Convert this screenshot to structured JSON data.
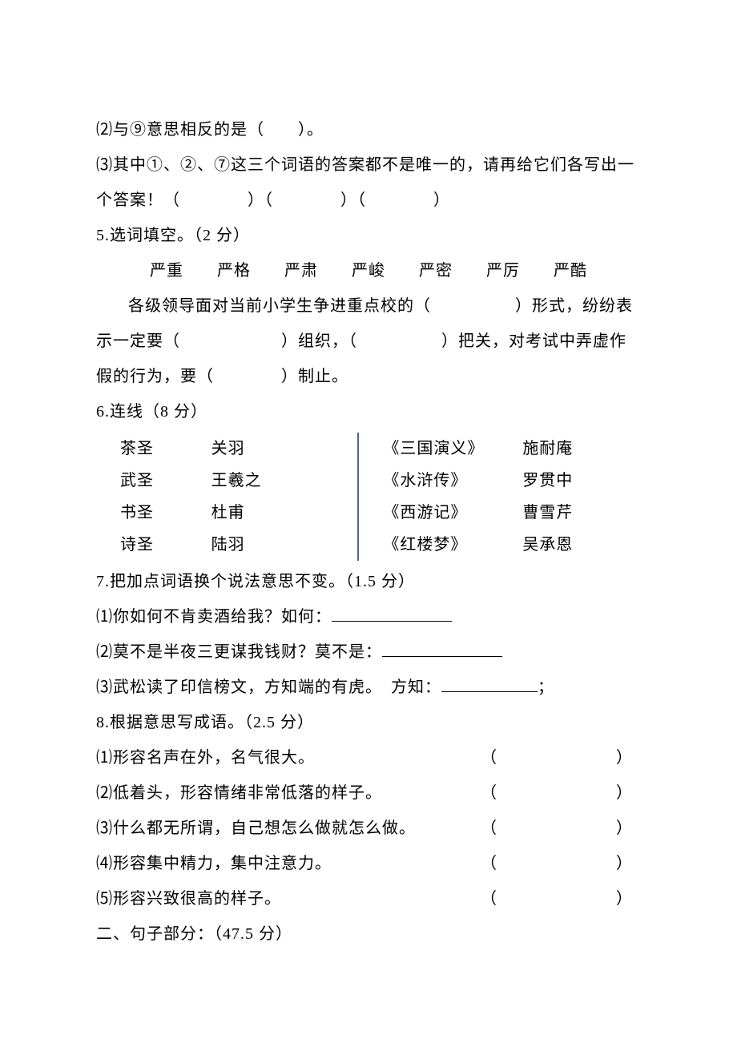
{
  "q2": "⑵与⑨意思相反的是（　　）。",
  "q3": "⑶其中①、②、⑦这三个词语的答案都不是唯一的，请再给它们各写出一个答案！（　　　　）（　　　　）（　　　　）",
  "q5_title": "5.选词填空。（2 分）",
  "q5_wordbank": "严重　　严格　　严肃　　严峻　　严密　　严厉　　严酷",
  "q5_sent1": "各级领导面对当前小学生争进重点校的（　　　　　）形式，纷纷表示一定要（　　　　　　）组织，（　　　　　）把关，对考试中弄虚作假的行为，要（　　　　）制止。",
  "q6_title": "6.连线（8 分）",
  "match_left": [
    {
      "a": "茶圣",
      "b": "关羽"
    },
    {
      "a": "武圣",
      "b": "王羲之"
    },
    {
      "a": "书圣",
      "b": "杜甫"
    },
    {
      "a": "诗圣",
      "b": "陆羽"
    }
  ],
  "match_right": [
    {
      "a": "《三国演义》",
      "b": "施耐庵"
    },
    {
      "a": "《水浒传》",
      "b": "罗贯中"
    },
    {
      "a": "《西游记》",
      "b": "曹雪芹"
    },
    {
      "a": "《红楼梦》",
      "b": "吴承恩"
    }
  ],
  "q7_title": "7.把加点词语换个说法意思不变。（1.5 分）",
  "q7_1": "⑴你如何不肯卖酒给我？如何：",
  "q7_2": "⑵莫不是半夜三更谋我钱财？莫不是：",
  "q7_3a": "⑶武松读了印信榜文，方知端的有虎。　方知：",
  "q7_3b": "；",
  "q8_title": "8.根据意思写成语。（2.5 分）",
  "q8_items": [
    "⑴形容名声在外，名气很大。",
    "⑵低着头，形容情绪非常低落的样子。",
    "⑶什么都无所谓，自己想怎么做就怎么做。",
    "⑷形容集中精力，集中注意力。",
    "⑸形容兴致很高的样子。"
  ],
  "section2": "二、句子部分：（47.5 分）"
}
